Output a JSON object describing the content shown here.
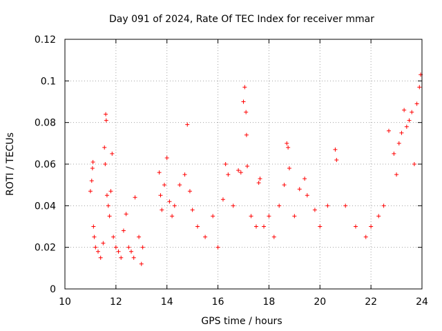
{
  "chart_data": {
    "type": "scatter",
    "title": "Day 091 of 2024, Rate Of TEC Index for receiver mmar",
    "xlabel": "GPS time / hours",
    "ylabel": "ROTI / TECUs",
    "xlim": [
      10,
      24
    ],
    "ylim": [
      0,
      0.12
    ],
    "grid": true,
    "marker": "+",
    "x_ticks": [
      10,
      12,
      14,
      16,
      18,
      20,
      22,
      24
    ],
    "x_tick_labels": [
      "10",
      "12",
      "14",
      "16",
      "18",
      "20",
      "22",
      "24"
    ],
    "y_ticks": [
      0,
      0.02,
      0.04,
      0.06,
      0.08,
      0.1,
      0.12
    ],
    "y_tick_labels": [
      "0",
      "0.02",
      "0.04",
      "0.06",
      "0.08",
      "0.1",
      "0.12"
    ],
    "series": [
      {
        "name": "ROTI",
        "color": "#ff0000",
        "points": [
          [
            11.0,
            0.047
          ],
          [
            11.05,
            0.052
          ],
          [
            11.1,
            0.061
          ],
          [
            11.08,
            0.058
          ],
          [
            11.12,
            0.03
          ],
          [
            11.15,
            0.025
          ],
          [
            11.2,
            0.02
          ],
          [
            11.3,
            0.018
          ],
          [
            11.4,
            0.015
          ],
          [
            11.5,
            0.022
          ],
          [
            11.55,
            0.068
          ],
          [
            11.6,
            0.084
          ],
          [
            11.62,
            0.081
          ],
          [
            11.58,
            0.06
          ],
          [
            11.65,
            0.045
          ],
          [
            11.7,
            0.04
          ],
          [
            11.75,
            0.035
          ],
          [
            11.8,
            0.047
          ],
          [
            11.85,
            0.065
          ],
          [
            11.9,
            0.025
          ],
          [
            12.0,
            0.02
          ],
          [
            12.1,
            0.018
          ],
          [
            12.2,
            0.015
          ],
          [
            12.3,
            0.028
          ],
          [
            12.4,
            0.036
          ],
          [
            12.5,
            0.02
          ],
          [
            12.6,
            0.018
          ],
          [
            12.7,
            0.015
          ],
          [
            12.75,
            0.044
          ],
          [
            12.9,
            0.025
          ],
          [
            13.0,
            0.012
          ],
          [
            13.05,
            0.02
          ],
          [
            13.7,
            0.056
          ],
          [
            13.75,
            0.045
          ],
          [
            13.8,
            0.038
          ],
          [
            13.9,
            0.05
          ],
          [
            14.0,
            0.063
          ],
          [
            14.1,
            0.042
          ],
          [
            14.2,
            0.035
          ],
          [
            14.3,
            0.04
          ],
          [
            14.5,
            0.05
          ],
          [
            14.7,
            0.055
          ],
          [
            14.8,
            0.079
          ],
          [
            14.9,
            0.047
          ],
          [
            15.0,
            0.038
          ],
          [
            15.2,
            0.03
          ],
          [
            15.5,
            0.025
          ],
          [
            15.8,
            0.035
          ],
          [
            16.0,
            0.02
          ],
          [
            16.2,
            0.043
          ],
          [
            16.3,
            0.06
          ],
          [
            16.4,
            0.055
          ],
          [
            16.6,
            0.04
          ],
          [
            16.8,
            0.057
          ],
          [
            16.9,
            0.056
          ],
          [
            17.0,
            0.09
          ],
          [
            17.05,
            0.097
          ],
          [
            17.1,
            0.085
          ],
          [
            17.12,
            0.074
          ],
          [
            17.15,
            0.059
          ],
          [
            17.3,
            0.035
          ],
          [
            17.5,
            0.03
          ],
          [
            17.6,
            0.051
          ],
          [
            17.65,
            0.053
          ],
          [
            17.8,
            0.03
          ],
          [
            18.0,
            0.035
          ],
          [
            18.2,
            0.025
          ],
          [
            18.4,
            0.04
          ],
          [
            18.6,
            0.05
          ],
          [
            18.7,
            0.07
          ],
          [
            18.75,
            0.068
          ],
          [
            18.8,
            0.058
          ],
          [
            19.0,
            0.035
          ],
          [
            19.2,
            0.048
          ],
          [
            19.4,
            0.053
          ],
          [
            19.5,
            0.045
          ],
          [
            19.8,
            0.038
          ],
          [
            20.0,
            0.03
          ],
          [
            20.3,
            0.04
          ],
          [
            20.6,
            0.067
          ],
          [
            20.65,
            0.062
          ],
          [
            21.0,
            0.04
          ],
          [
            21.4,
            0.03
          ],
          [
            21.8,
            0.025
          ],
          [
            22.0,
            0.03
          ],
          [
            22.3,
            0.035
          ],
          [
            22.5,
            0.04
          ],
          [
            22.7,
            0.076
          ],
          [
            22.9,
            0.065
          ],
          [
            23.0,
            0.055
          ],
          [
            23.1,
            0.07
          ],
          [
            23.2,
            0.075
          ],
          [
            23.3,
            0.086
          ],
          [
            23.4,
            0.078
          ],
          [
            23.5,
            0.081
          ],
          [
            23.6,
            0.085
          ],
          [
            23.7,
            0.06
          ],
          [
            23.8,
            0.089
          ],
          [
            23.9,
            0.097
          ],
          [
            23.95,
            0.103
          ]
        ]
      }
    ]
  }
}
